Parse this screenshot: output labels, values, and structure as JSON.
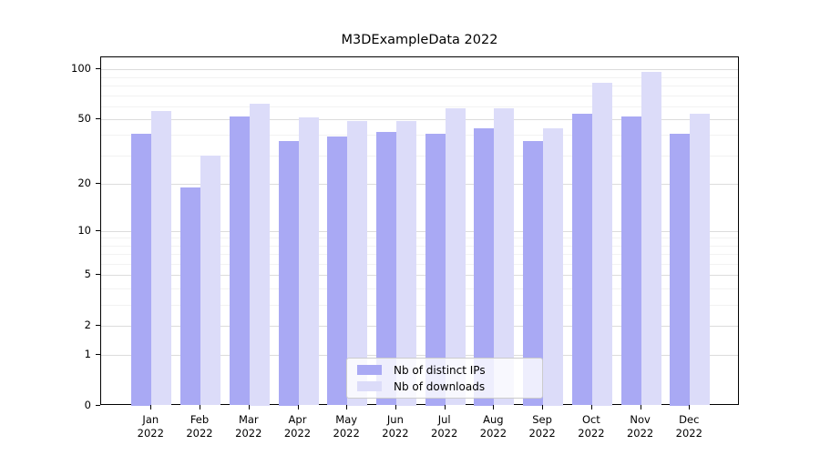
{
  "title": "M3DExampleData 2022",
  "chart_data": {
    "type": "bar",
    "title": "M3DExampleData 2022",
    "categories": [
      "Jan 2022",
      "Feb 2022",
      "Mar 2022",
      "Apr 2022",
      "May 2022",
      "Jun 2022",
      "Jul 2022",
      "Aug 2022",
      "Sep 2022",
      "Oct 2022",
      "Nov 2022",
      "Dec 2022"
    ],
    "x_tick_labels_line1": [
      "Jan",
      "Feb",
      "Mar",
      "Apr",
      "May",
      "Jun",
      "Jul",
      "Aug",
      "Sep",
      "Oct",
      "Nov",
      "Dec"
    ],
    "x_tick_labels_line2": [
      "2022",
      "2022",
      "2022",
      "2022",
      "2022",
      "2022",
      "2022",
      "2022",
      "2022",
      "2022",
      "2022",
      "2022"
    ],
    "series": [
      {
        "name": "Nb of distinct IPs",
        "color": "#a9a9f4",
        "values": [
          41,
          19,
          52,
          37,
          39,
          42,
          41,
          44,
          37,
          54,
          52,
          41
        ]
      },
      {
        "name": "Nb of downloads",
        "color": "#dcdcf9",
        "values": [
          56,
          30,
          62,
          51,
          49,
          49,
          58,
          58,
          44,
          83,
          97,
          54
        ]
      }
    ],
    "xlabel": "",
    "ylabel": "",
    "y_axis": {
      "scale": "log1p",
      "tick_values": [
        0,
        1,
        2,
        5,
        10,
        20,
        50,
        100
      ],
      "tick_labels": [
        "0",
        "1",
        "2",
        "5",
        "10",
        "20",
        "50",
        "100"
      ],
      "minor_gridline_values": [
        3,
        4,
        6,
        7,
        8,
        9,
        30,
        40,
        60,
        70,
        80,
        90
      ],
      "range": [
        0,
        118
      ]
    },
    "grid": "horizontal-on",
    "legend_position": "lower-center"
  },
  "colors": {
    "distinct_ips_bar": "#a9a9f4",
    "downloads_bar": "#dcdcf9",
    "major_gridline": "#dcdcdc",
    "minor_gridline": "#f2f2f2",
    "axis_spine": "#000000",
    "background": "#ffffff"
  }
}
